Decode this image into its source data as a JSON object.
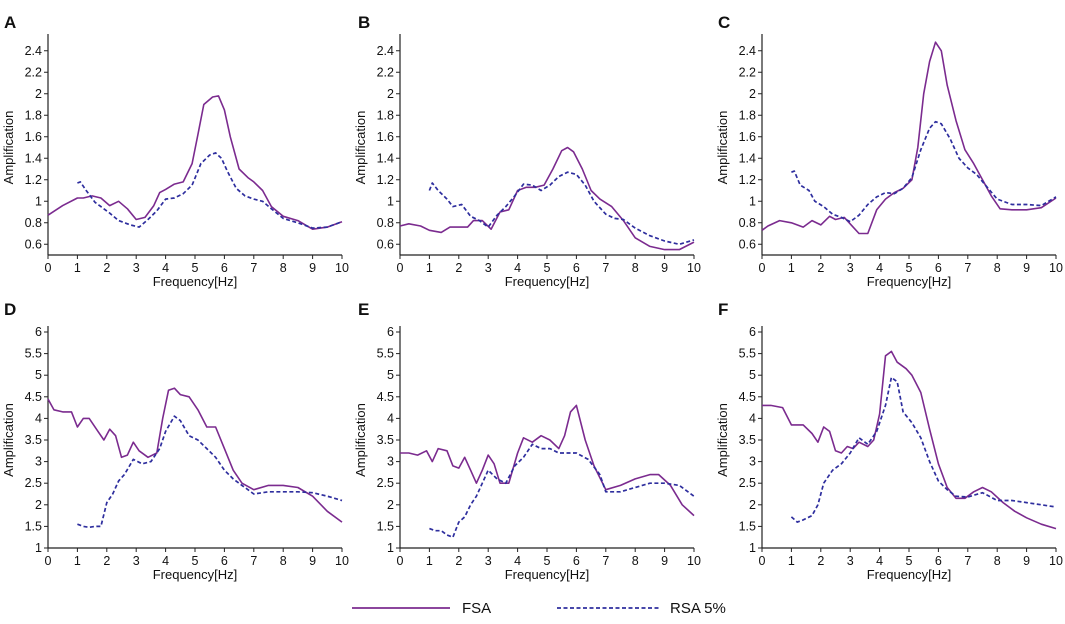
{
  "colors": {
    "fsa": "#7B2B8F",
    "rsa": "#2E2E9E",
    "axis": "#222222"
  },
  "legend": [
    {
      "name": "FSA",
      "style": "solid"
    },
    {
      "name": "RSA 5%",
      "style": "dashed"
    }
  ],
  "chart_data": [
    {
      "type": "line",
      "panel": "A",
      "xlabel": "Frequency[Hz]",
      "ylabel": "Amplification",
      "xlim": [
        0,
        10
      ],
      "ylim": [
        0.5,
        2.5
      ],
      "xticks": [
        "0",
        "1",
        "2",
        "3",
        "4",
        "5",
        "6",
        "7",
        "8",
        "9",
        "10"
      ],
      "yticks": [
        "0.6",
        "0.8",
        "1",
        "1.2",
        "1.4",
        "1.6",
        "1.8",
        "2",
        "2.2",
        "2.4"
      ],
      "series": [
        {
          "name": "FSA",
          "x": [
            0,
            0.5,
            1,
            1.2,
            1.5,
            1.8,
            2.1,
            2.4,
            2.7,
            3,
            3.3,
            3.6,
            3.8,
            4,
            4.3,
            4.6,
            4.9,
            5.1,
            5.3,
            5.6,
            5.8,
            6,
            6.2,
            6.5,
            6.8,
            7,
            7.3,
            7.6,
            8,
            8.5,
            9,
            9.5,
            10
          ],
          "y": [
            0.87,
            0.96,
            1.03,
            1.03,
            1.05,
            1.03,
            0.96,
            1.0,
            0.93,
            0.83,
            0.85,
            0.96,
            1.08,
            1.11,
            1.16,
            1.18,
            1.35,
            1.62,
            1.9,
            1.97,
            1.98,
            1.85,
            1.6,
            1.3,
            1.22,
            1.18,
            1.1,
            0.95,
            0.86,
            0.82,
            0.74,
            0.76,
            0.81
          ]
        },
        {
          "name": "RSA 5%",
          "x": [
            1,
            1.1,
            1.3,
            1.6,
            1.8,
            2.1,
            2.4,
            2.8,
            3.1,
            3.4,
            3.7,
            4,
            4.3,
            4.6,
            4.9,
            5.2,
            5.5,
            5.7,
            5.9,
            6.1,
            6.4,
            6.7,
            7,
            7.3,
            7.6,
            8,
            8.5,
            9,
            9.5,
            10
          ],
          "y": [
            1.17,
            1.18,
            1.1,
            0.99,
            0.95,
            0.89,
            0.82,
            0.78,
            0.76,
            0.83,
            0.91,
            1.02,
            1.03,
            1.07,
            1.15,
            1.35,
            1.43,
            1.45,
            1.4,
            1.28,
            1.12,
            1.05,
            1.02,
            1.0,
            0.93,
            0.84,
            0.8,
            0.75,
            0.76,
            0.81
          ]
        }
      ]
    },
    {
      "type": "line",
      "panel": "B",
      "xlabel": "Frequency[Hz]",
      "ylabel": "Amplification",
      "xlim": [
        0,
        10
      ],
      "ylim": [
        0.5,
        2.5
      ],
      "xticks": [
        "0",
        "1",
        "2",
        "3",
        "4",
        "5",
        "6",
        "7",
        "8",
        "9",
        "10"
      ],
      "yticks": [
        "0.6",
        "0.8",
        "1",
        "1.2",
        "1.4",
        "1.6",
        "1.8",
        "2",
        "2.2",
        "2.4"
      ],
      "series": [
        {
          "name": "FSA",
          "x": [
            0,
            0.3,
            0.7,
            1,
            1.4,
            1.7,
            2,
            2.3,
            2.5,
            2.8,
            3.1,
            3.4,
            3.7,
            4,
            4.3,
            4.6,
            4.9,
            5.2,
            5.5,
            5.7,
            5.9,
            6.2,
            6.5,
            6.8,
            7.2,
            7.6,
            8,
            8.5,
            9,
            9.5,
            10
          ],
          "y": [
            0.77,
            0.79,
            0.77,
            0.73,
            0.71,
            0.76,
            0.76,
            0.76,
            0.82,
            0.82,
            0.74,
            0.9,
            0.92,
            1.1,
            1.13,
            1.13,
            1.15,
            1.3,
            1.47,
            1.5,
            1.46,
            1.3,
            1.1,
            1.02,
            0.95,
            0.82,
            0.66,
            0.58,
            0.55,
            0.55,
            0.62
          ]
        },
        {
          "name": "RSA 5%",
          "x": [
            1,
            1.1,
            1.3,
            1.6,
            1.8,
            2.1,
            2.4,
            2.7,
            3,
            3.3,
            3.6,
            3.9,
            4.2,
            4.5,
            4.8,
            5.1,
            5.4,
            5.7,
            6,
            6.3,
            6.6,
            7,
            7.3,
            7.6,
            8,
            8.5,
            9,
            9.5,
            10
          ],
          "y": [
            1.1,
            1.17,
            1.1,
            1.02,
            0.95,
            0.97,
            0.86,
            0.82,
            0.76,
            0.87,
            0.95,
            1.05,
            1.16,
            1.15,
            1.1,
            1.15,
            1.23,
            1.27,
            1.25,
            1.15,
            1.0,
            0.88,
            0.84,
            0.83,
            0.75,
            0.68,
            0.63,
            0.6,
            0.64
          ]
        }
      ]
    },
    {
      "type": "line",
      "panel": "C",
      "xlabel": "Frequency[Hz]",
      "ylabel": "Amplification",
      "xlim": [
        0,
        10
      ],
      "ylim": [
        0.5,
        2.5
      ],
      "xticks": [
        "0",
        "1",
        "2",
        "3",
        "4",
        "5",
        "6",
        "7",
        "8",
        "9",
        "10"
      ],
      "yticks": [
        "0.6",
        "0.8",
        "1",
        "1.2",
        "1.4",
        "1.6",
        "1.8",
        "2",
        "2.2",
        "2.4"
      ],
      "series": [
        {
          "name": "FSA",
          "x": [
            0,
            0.2,
            0.6,
            1,
            1.4,
            1.7,
            2,
            2.3,
            2.5,
            2.8,
            3.1,
            3.3,
            3.6,
            3.9,
            4.2,
            4.5,
            4.8,
            5.1,
            5.3,
            5.5,
            5.7,
            5.9,
            6.1,
            6.3,
            6.6,
            6.9,
            7.2,
            7.5,
            7.8,
            8.1,
            8.5,
            9,
            9.5,
            10
          ],
          "y": [
            0.73,
            0.77,
            0.82,
            0.8,
            0.76,
            0.82,
            0.78,
            0.86,
            0.83,
            0.85,
            0.76,
            0.7,
            0.7,
            0.92,
            1.02,
            1.08,
            1.12,
            1.2,
            1.5,
            2.0,
            2.3,
            2.48,
            2.4,
            2.08,
            1.75,
            1.48,
            1.35,
            1.2,
            1.05,
            0.93,
            0.92,
            0.92,
            0.94,
            1.03
          ]
        },
        {
          "name": "RSA 5%",
          "x": [
            1,
            1.1,
            1.3,
            1.6,
            1.8,
            2.1,
            2.4,
            2.7,
            3,
            3.3,
            3.6,
            3.9,
            4.2,
            4.5,
            4.8,
            5.1,
            5.4,
            5.7,
            5.9,
            6.1,
            6.4,
            6.7,
            7,
            7.3,
            7.6,
            8,
            8.5,
            9,
            9.5,
            10
          ],
          "y": [
            1.27,
            1.28,
            1.15,
            1.1,
            1.0,
            0.95,
            0.88,
            0.85,
            0.81,
            0.87,
            0.97,
            1.04,
            1.08,
            1.07,
            1.12,
            1.22,
            1.48,
            1.68,
            1.74,
            1.72,
            1.58,
            1.4,
            1.31,
            1.25,
            1.15,
            1.02,
            0.97,
            0.97,
            0.96,
            1.04
          ]
        }
      ]
    },
    {
      "type": "line",
      "panel": "D",
      "xlabel": "Frequency[Hz]",
      "ylabel": "Amplification",
      "xlim": [
        0,
        10
      ],
      "ylim": [
        1,
        6
      ],
      "xticks": [
        "0",
        "1",
        "2",
        "3",
        "4",
        "5",
        "6",
        "7",
        "8",
        "9",
        "10"
      ],
      "yticks": [
        "1",
        "1.5",
        "2",
        "2.5",
        "3",
        "3.5",
        "4",
        "4.5",
        "5",
        "5.5",
        "6"
      ],
      "series": [
        {
          "name": "FSA",
          "x": [
            0,
            0.2,
            0.5,
            0.8,
            1,
            1.2,
            1.4,
            1.7,
            1.9,
            2.1,
            2.3,
            2.5,
            2.7,
            2.9,
            3.1,
            3.4,
            3.7,
            3.9,
            4.1,
            4.3,
            4.5,
            4.8,
            5.1,
            5.4,
            5.7,
            6,
            6.3,
            6.6,
            7,
            7.5,
            8,
            8.5,
            9,
            9.5,
            10
          ],
          "y": [
            4.45,
            4.2,
            4.15,
            4.15,
            3.8,
            4.0,
            4.0,
            3.7,
            3.5,
            3.75,
            3.6,
            3.1,
            3.15,
            3.45,
            3.25,
            3.1,
            3.2,
            4.0,
            4.65,
            4.7,
            4.55,
            4.5,
            4.2,
            3.8,
            3.8,
            3.3,
            2.8,
            2.5,
            2.35,
            2.45,
            2.45,
            2.4,
            2.2,
            1.85,
            1.6
          ]
        },
        {
          "name": "RSA 5%",
          "x": [
            1,
            1.2,
            1.4,
            1.6,
            1.8,
            2,
            2.2,
            2.4,
            2.6,
            2.9,
            3.2,
            3.5,
            3.8,
            4,
            4.3,
            4.5,
            4.8,
            5.1,
            5.4,
            5.7,
            6,
            6.3,
            6.6,
            7,
            7.5,
            8,
            8.5,
            9,
            9.5,
            10
          ],
          "y": [
            1.55,
            1.5,
            1.48,
            1.5,
            1.5,
            2.05,
            2.25,
            2.55,
            2.7,
            3.05,
            2.95,
            3.0,
            3.3,
            3.7,
            4.05,
            3.95,
            3.6,
            3.5,
            3.3,
            3.1,
            2.8,
            2.6,
            2.45,
            2.25,
            2.3,
            2.3,
            2.3,
            2.28,
            2.2,
            2.1
          ]
        }
      ]
    },
    {
      "type": "line",
      "panel": "E",
      "xlabel": "Frequency[Hz]",
      "ylabel": "Amplification",
      "xlim": [
        0,
        10
      ],
      "ylim": [
        1,
        6
      ],
      "xticks": [
        "0",
        "1",
        "2",
        "3",
        "4",
        "5",
        "6",
        "7",
        "8",
        "9",
        "10"
      ],
      "yticks": [
        "1",
        "1.5",
        "2",
        "2.5",
        "3",
        "3.5",
        "4",
        "4.5",
        "5",
        "5.5",
        "6"
      ],
      "series": [
        {
          "name": "FSA",
          "x": [
            0,
            0.3,
            0.6,
            0.9,
            1.1,
            1.3,
            1.6,
            1.8,
            2,
            2.2,
            2.4,
            2.6,
            2.8,
            3,
            3.2,
            3.4,
            3.7,
            4,
            4.2,
            4.5,
            4.8,
            5.1,
            5.4,
            5.6,
            5.8,
            6,
            6.3,
            6.6,
            7,
            7.5,
            8,
            8.5,
            8.8,
            9.2,
            9.6,
            10
          ],
          "y": [
            3.2,
            3.2,
            3.15,
            3.25,
            3.0,
            3.3,
            3.25,
            2.9,
            2.85,
            3.1,
            2.8,
            2.5,
            2.8,
            3.15,
            2.95,
            2.5,
            2.5,
            3.2,
            3.55,
            3.45,
            3.6,
            3.5,
            3.3,
            3.6,
            4.15,
            4.3,
            3.5,
            2.9,
            2.35,
            2.45,
            2.6,
            2.7,
            2.7,
            2.45,
            2.0,
            1.75
          ]
        },
        {
          "name": "RSA 5%",
          "x": [
            1,
            1.2,
            1.4,
            1.6,
            1.8,
            2,
            2.2,
            2.4,
            2.6,
            2.8,
            3,
            3.3,
            3.6,
            3.9,
            4.2,
            4.5,
            4.8,
            5.1,
            5.4,
            5.7,
            6,
            6.4,
            6.8,
            7,
            7.5,
            8,
            8.5,
            9,
            9.5,
            10
          ],
          "y": [
            1.45,
            1.4,
            1.4,
            1.3,
            1.25,
            1.6,
            1.72,
            2.0,
            2.2,
            2.5,
            2.8,
            2.6,
            2.5,
            2.9,
            3.1,
            3.4,
            3.3,
            3.3,
            3.2,
            3.2,
            3.2,
            3.05,
            2.7,
            2.3,
            2.3,
            2.4,
            2.5,
            2.5,
            2.45,
            2.2
          ]
        }
      ]
    },
    {
      "type": "line",
      "panel": "F",
      "xlabel": "Frequency[Hz]",
      "ylabel": "Amplification",
      "xlim": [
        0,
        10
      ],
      "ylim": [
        1,
        6
      ],
      "xticks": [
        "0",
        "1",
        "2",
        "3",
        "4",
        "5",
        "6",
        "7",
        "8",
        "9",
        "10"
      ],
      "yticks": [
        "1",
        "1.5",
        "2",
        "2.5",
        "3",
        "3.5",
        "4",
        "4.5",
        "5",
        "5.5",
        "6"
      ],
      "series": [
        {
          "name": "FSA",
          "x": [
            0,
            0.3,
            0.7,
            1,
            1.4,
            1.7,
            1.9,
            2.1,
            2.3,
            2.5,
            2.7,
            2.9,
            3.1,
            3.3,
            3.6,
            3.8,
            4,
            4.2,
            4.4,
            4.6,
            4.9,
            5.1,
            5.4,
            5.7,
            6,
            6.3,
            6.6,
            6.9,
            7.2,
            7.5,
            7.8,
            8.2,
            8.6,
            9,
            9.5,
            10
          ],
          "y": [
            4.3,
            4.3,
            4.25,
            3.85,
            3.85,
            3.65,
            3.45,
            3.8,
            3.7,
            3.25,
            3.2,
            3.35,
            3.3,
            3.45,
            3.35,
            3.5,
            4.1,
            5.45,
            5.55,
            5.3,
            5.15,
            5.0,
            4.6,
            3.75,
            2.95,
            2.4,
            2.15,
            2.15,
            2.3,
            2.4,
            2.3,
            2.05,
            1.85,
            1.7,
            1.55,
            1.45
          ]
        },
        {
          "name": "RSA 5%",
          "x": [
            1,
            1.2,
            1.4,
            1.7,
            1.9,
            2.1,
            2.4,
            2.7,
            3,
            3.3,
            3.6,
            3.9,
            4.2,
            4.4,
            4.6,
            4.8,
            5.1,
            5.4,
            5.7,
            6,
            6.3,
            6.6,
            7,
            7.5,
            8,
            8.5,
            9,
            9.5,
            10
          ],
          "y": [
            1.72,
            1.6,
            1.65,
            1.75,
            2.0,
            2.5,
            2.8,
            2.95,
            3.2,
            3.55,
            3.4,
            3.7,
            4.3,
            4.95,
            4.85,
            4.15,
            3.9,
            3.55,
            3.0,
            2.55,
            2.35,
            2.2,
            2.18,
            2.28,
            2.1,
            2.1,
            2.05,
            2.0,
            1.95
          ]
        }
      ]
    }
  ]
}
